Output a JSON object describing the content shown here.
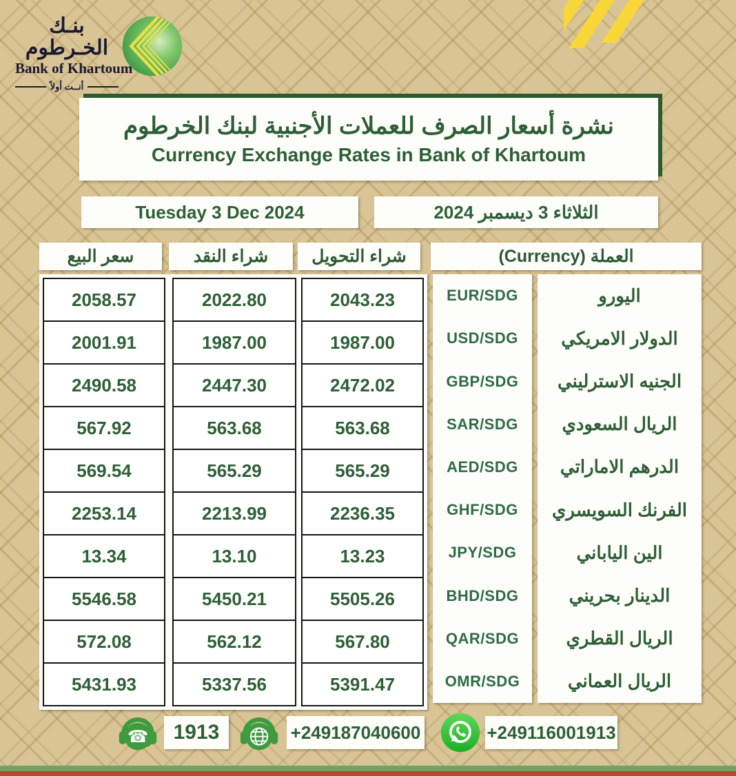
{
  "logo": {
    "calligraphy": "بنـك الخـرطوم",
    "name_en": "Bank of Khartoum",
    "tagline": "أنــت أولاً"
  },
  "header": {
    "title_ar": "نشرة أسعار الصرف للعملات الأجنبية لبنك الخرطوم",
    "title_en": "Currency Exchange Rates in Bank of Khartoum"
  },
  "dates": {
    "en": "Tuesday 3 Dec  2024",
    "ar": "الثلاثاء 3 ديسمبر  2024"
  },
  "table": {
    "headers": {
      "sell": "سعر البيع",
      "cash_buy": "شراء النقد",
      "transfer_buy": "شراء التحويل",
      "currency": "العملة (Currency)"
    },
    "rows": [
      {
        "name_ar": "اليورو",
        "code": "EUR/SDG",
        "transfer_buy": "2043.23",
        "cash_buy": "2022.80",
        "sell": "2058.57"
      },
      {
        "name_ar": "الدولار الامريكي",
        "code": "USD/SDG",
        "transfer_buy": "1987.00",
        "cash_buy": "1987.00",
        "sell": "2001.91"
      },
      {
        "name_ar": "الجنيه الاسترليني",
        "code": "GBP/SDG",
        "transfer_buy": "2472.02",
        "cash_buy": "2447.30",
        "sell": "2490.58"
      },
      {
        "name_ar": "الريال السعودي",
        "code": "SAR/SDG",
        "transfer_buy": "563.68",
        "cash_buy": "563.68",
        "sell": "567.92"
      },
      {
        "name_ar": "الدرهم الاماراتي",
        "code": "AED/SDG",
        "transfer_buy": "565.29",
        "cash_buy": "565.29",
        "sell": "569.54"
      },
      {
        "name_ar": "الفرنك السويسري",
        "code": "GHF/SDG",
        "transfer_buy": "2236.35",
        "cash_buy": "2213.99",
        "sell": "2253.14"
      },
      {
        "name_ar": "الين الياباني",
        "code": "JPY/SDG",
        "transfer_buy": "13.23",
        "cash_buy": "13.10",
        "sell": "13.34"
      },
      {
        "name_ar": "الدينار بحريني",
        "code": "BHD/SDG",
        "transfer_buy": "5505.26",
        "cash_buy": "5450.21",
        "sell": "5546.58"
      },
      {
        "name_ar": "الريال القطري",
        "code": "QAR/SDG",
        "transfer_buy": "567.80",
        "cash_buy": "562.12",
        "sell": "572.08"
      },
      {
        "name_ar": "الريال العماني",
        "code": "OMR/SDG",
        "transfer_buy": "5391.47",
        "cash_buy": "5337.56",
        "sell": "5431.93"
      }
    ]
  },
  "contacts": {
    "call_center": "1913",
    "phone": "+249187040600",
    "whatsapp": "+249116001913"
  },
  "colors": {
    "background_tan": "#d8c495",
    "text_green": "#2d5f36",
    "accent_yellow": "#fad739",
    "whatsapp_green": "#2bc02e",
    "footer_green": "#6ba567",
    "footer_red": "#b34a2c"
  }
}
